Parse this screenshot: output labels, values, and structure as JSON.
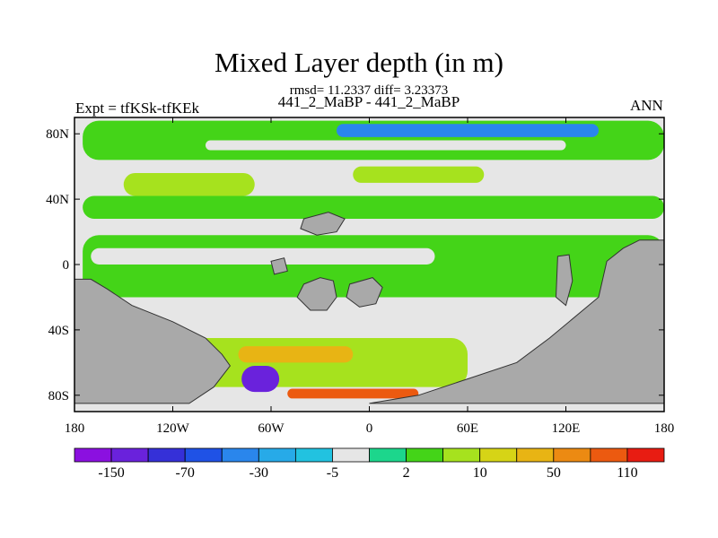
{
  "header": {
    "title": "Mixed Layer depth (in m)",
    "stats": "rmsd= 11.2337 diff= 3.23373",
    "subtitle": "441_2_MaBP - 441_2_MaBP",
    "left_string": "Expt = tfKSk-tfKEk",
    "right_string": "ANN"
  },
  "chart_data": {
    "type": "heatmap",
    "title": "Mixed Layer depth (in m)",
    "xlabel": "",
    "ylabel": "",
    "xlim": [
      -180,
      180
    ],
    "ylim": [
      -90,
      90
    ],
    "x_ticks": [
      {
        "value": -180,
        "label": "180"
      },
      {
        "value": -120,
        "label": "120W"
      },
      {
        "value": -60,
        "label": "60W"
      },
      {
        "value": 0,
        "label": "0"
      },
      {
        "value": 60,
        "label": "60E"
      },
      {
        "value": 120,
        "label": "120E"
      },
      {
        "value": 180,
        "label": "180"
      }
    ],
    "y_ticks": [
      {
        "value": 80,
        "label": "80N"
      },
      {
        "value": 40,
        "label": "40N"
      },
      {
        "value": 0,
        "label": "0"
      },
      {
        "value": -40,
        "label": "40S"
      },
      {
        "value": -80,
        "label": "80S"
      }
    ],
    "colorbar": {
      "colors": [
        "#8b10e0",
        "#6a22dc",
        "#3530d8",
        "#1f52e6",
        "#2a86ec",
        "#27aae8",
        "#22c2e0",
        "#e6e6e6",
        "#1cd68c",
        "#44d418",
        "#a6e21e",
        "#d6d416",
        "#e8b414",
        "#ec8a12",
        "#ec5a10",
        "#e81c12"
      ],
      "labels": [
        {
          "after_color": 0,
          "text": "-150"
        },
        {
          "after_color": 2,
          "text": "-70"
        },
        {
          "after_color": 4,
          "text": "-30"
        },
        {
          "after_color": 6,
          "text": "-5"
        },
        {
          "after_color": 8,
          "text": "2"
        },
        {
          "after_color": 10,
          "text": "10"
        },
        {
          "after_color": 12,
          "text": "50"
        },
        {
          "after_color": 14,
          "text": "110"
        }
      ]
    },
    "land_color": "#a9a9a9",
    "background_color": "#e6e6e6",
    "regions": [
      {
        "name": "Arctic band",
        "lon": [
          -175,
          180
        ],
        "lat": [
          64,
          88
        ],
        "color_index": 9
      },
      {
        "name": "Arctic negative streak",
        "lon": [
          -20,
          140
        ],
        "lat": [
          78,
          86
        ],
        "color_index": 4
      },
      {
        "name": "Arctic pale streak",
        "lon": [
          -100,
          120
        ],
        "lat": [
          70,
          76
        ],
        "color_index": 7
      },
      {
        "name": "North Pacific yellow",
        "lon": [
          -150,
          -70
        ],
        "lat": [
          42,
          56
        ],
        "color_index": 10
      },
      {
        "name": "North Atlantic yellow",
        "lon": [
          -10,
          70
        ],
        "lat": [
          50,
          60
        ],
        "color_index": 10
      },
      {
        "name": "North mid-lat green",
        "lon": [
          -175,
          180
        ],
        "lat": [
          28,
          42
        ],
        "color_index": 9
      },
      {
        "name": "Tropical green",
        "lon": [
          -175,
          180
        ],
        "lat": [
          -20,
          18
        ],
        "color_index": 9
      },
      {
        "name": "Tropical pale band",
        "lon": [
          -170,
          40
        ],
        "lat": [
          0,
          10
        ],
        "color_index": 7
      },
      {
        "name": "Southern Ocean yellow",
        "lon": [
          -110,
          60
        ],
        "lat": [
          -75,
          -45
        ],
        "color_index": 10
      },
      {
        "name": "Southern Ocean orange",
        "lon": [
          -80,
          -10
        ],
        "lat": [
          -60,
          -50
        ],
        "color_index": 12
      },
      {
        "name": "Polar purple",
        "lon": [
          -78,
          -55
        ],
        "lat": [
          -78,
          -62
        ],
        "color_index": 1
      },
      {
        "name": "Antarctic coast red",
        "lon": [
          -50,
          30
        ],
        "lat": [
          -82,
          -76
        ],
        "color_index": 14
      }
    ],
    "landmasses": [
      {
        "name": "West landmass",
        "polygon": [
          [
            -180,
            -9
          ],
          [
            -170,
            -9
          ],
          [
            -160,
            -15
          ],
          [
            -145,
            -25
          ],
          [
            -120,
            -35
          ],
          [
            -100,
            -45
          ],
          [
            -90,
            -55
          ],
          [
            -85,
            -62
          ],
          [
            -95,
            -75
          ],
          [
            -110,
            -85
          ],
          [
            -180,
            -85
          ]
        ]
      },
      {
        "name": "East landmass",
        "polygon": [
          [
            180,
            15
          ],
          [
            165,
            15
          ],
          [
            155,
            10
          ],
          [
            145,
            2
          ],
          [
            140,
            -20
          ],
          [
            110,
            -45
          ],
          [
            90,
            -60
          ],
          [
            60,
            -70
          ],
          [
            30,
            -80
          ],
          [
            0,
            -85
          ],
          [
            180,
            -85
          ]
        ]
      },
      {
        "name": "Island A",
        "polygon": [
          [
            -40,
            -12
          ],
          [
            -30,
            -8
          ],
          [
            -22,
            -10
          ],
          [
            -20,
            -20
          ],
          [
            -26,
            -28
          ],
          [
            -36,
            -28
          ],
          [
            -44,
            -20
          ]
        ]
      },
      {
        "name": "Island B",
        "polygon": [
          [
            -12,
            -12
          ],
          [
            2,
            -8
          ],
          [
            8,
            -14
          ],
          [
            4,
            -24
          ],
          [
            -6,
            -26
          ],
          [
            -14,
            -20
          ]
        ]
      },
      {
        "name": "Island C",
        "polygon": [
          [
            -40,
            28
          ],
          [
            -25,
            32
          ],
          [
            -15,
            28
          ],
          [
            -20,
            20
          ],
          [
            -32,
            18
          ],
          [
            -42,
            22
          ]
        ]
      },
      {
        "name": "Island D",
        "polygon": [
          [
            -60,
            2
          ],
          [
            -52,
            4
          ],
          [
            -50,
            -4
          ],
          [
            -58,
            -6
          ]
        ]
      },
      {
        "name": "Island E",
        "polygon": [
          [
            115,
            5
          ],
          [
            122,
            6
          ],
          [
            124,
            -10
          ],
          [
            120,
            -25
          ],
          [
            114,
            -20
          ]
        ]
      }
    ]
  }
}
